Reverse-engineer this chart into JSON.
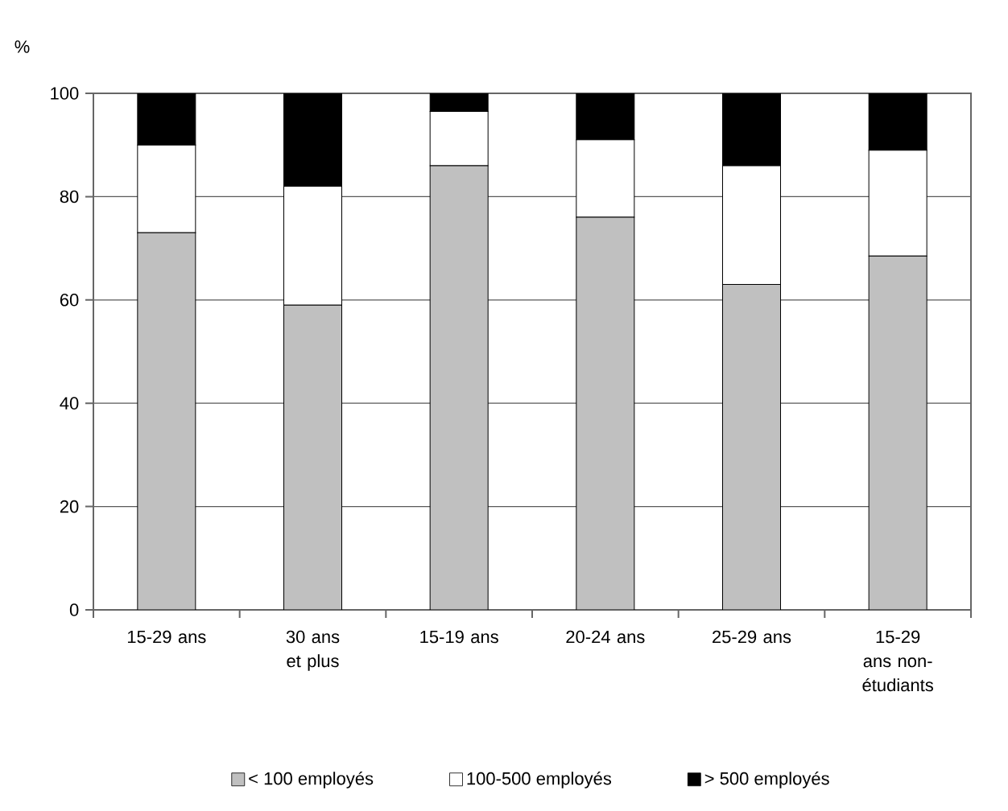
{
  "chart_data": {
    "type": "bar",
    "stacked": true,
    "ylabel": "%",
    "categories": [
      "15-29 ans",
      "30 ans et plus",
      "15-19 ans",
      "20-24 ans",
      "25-29 ans",
      "15-29 ans non-étudiants"
    ],
    "series": [
      {
        "name": "< 100 employés",
        "color": "#c0c0c0",
        "values": [
          73,
          59,
          86,
          76,
          63,
          68.5
        ]
      },
      {
        "name": "100-500 employés",
        "color": "#ffffff",
        "values": [
          17,
          23,
          10.5,
          15,
          23,
          20.5
        ]
      },
      {
        "name": "> 500 employés",
        "color": "#000000",
        "values": [
          10,
          18,
          3.5,
          9,
          14,
          11
        ]
      }
    ],
    "ylim": [
      0,
      100
    ],
    "yticks": [
      0,
      20,
      40,
      60,
      80,
      100
    ],
    "grid": "y",
    "legend": "bottom"
  }
}
